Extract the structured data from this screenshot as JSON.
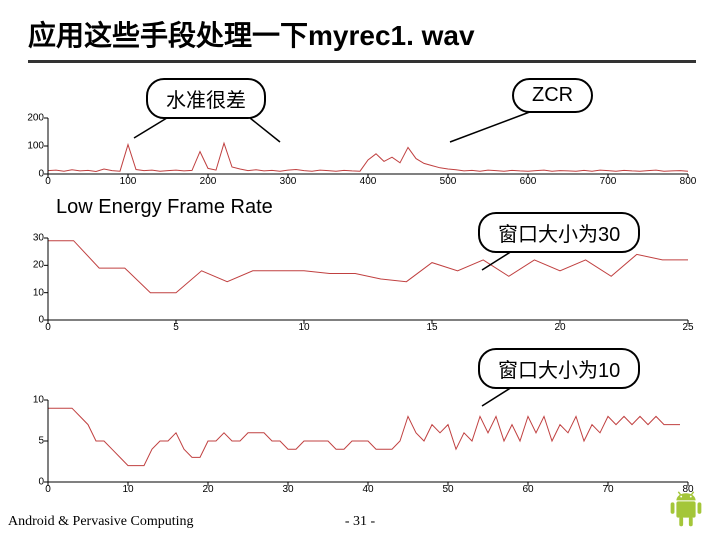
{
  "title": "应用这些手段处理一下myrec1. wav",
  "callouts": {
    "poor": "水准很差",
    "zcr": "ZCR",
    "win30": "窗口大小为30",
    "win10": "窗口大小为10"
  },
  "section_label": "Low Energy Frame Rate",
  "footer": {
    "left": "Android & Pervasive Computing",
    "page": "- 31 -"
  },
  "chart1": {
    "type": "line",
    "line_color": "#c04040",
    "axis_color": "#000000",
    "ylim": [
      0,
      200
    ],
    "yticks": [
      0,
      100,
      200
    ],
    "xlim": [
      0,
      800
    ],
    "xticks": [
      0,
      100,
      200,
      300,
      400,
      500,
      600,
      700,
      800
    ],
    "x": [
      0,
      10,
      20,
      30,
      40,
      50,
      60,
      70,
      80,
      90,
      100,
      110,
      120,
      130,
      140,
      150,
      160,
      170,
      180,
      190,
      200,
      210,
      220,
      230,
      240,
      250,
      260,
      270,
      280,
      290,
      300,
      310,
      320,
      330,
      340,
      350,
      360,
      370,
      380,
      390,
      400,
      410,
      420,
      430,
      440,
      450,
      460,
      470,
      480,
      490,
      500,
      510,
      520,
      530,
      540,
      550,
      560,
      570,
      580,
      590,
      600,
      610,
      620,
      630,
      640,
      650,
      660,
      670,
      680,
      690,
      700,
      710,
      720,
      730,
      740,
      750,
      760,
      770,
      780,
      790,
      800
    ],
    "y": [
      12,
      14,
      10,
      15,
      11,
      13,
      9,
      18,
      12,
      10,
      105,
      16,
      12,
      14,
      10,
      12,
      14,
      11,
      13,
      80,
      20,
      14,
      110,
      25,
      18,
      12,
      15,
      11,
      13,
      10,
      14,
      16,
      12,
      10,
      14,
      12,
      10,
      13,
      11,
      10,
      50,
      72,
      45,
      60,
      40,
      95,
      55,
      38,
      30,
      22,
      18,
      15,
      11,
      13,
      10,
      14,
      12,
      10,
      13,
      11,
      10,
      12,
      14,
      10,
      12,
      11,
      10,
      13,
      10,
      14,
      12,
      10,
      13,
      11,
      10,
      12,
      14,
      10,
      11,
      12,
      10
    ]
  },
  "chart2": {
    "type": "line",
    "line_color": "#c04040",
    "axis_color": "#000000",
    "ylim": [
      0,
      30
    ],
    "yticks": [
      0,
      10,
      20,
      30
    ],
    "xlim": [
      0,
      25
    ],
    "xticks": [
      0,
      5,
      10,
      15,
      20,
      25
    ],
    "x": [
      0,
      1,
      2,
      3,
      4,
      5,
      6,
      7,
      8,
      9,
      10,
      11,
      12,
      13,
      14,
      15,
      16,
      17,
      18,
      19,
      20,
      21,
      22,
      23,
      24,
      25
    ],
    "y": [
      29,
      29,
      19,
      19,
      10,
      10,
      18,
      14,
      18,
      18,
      18,
      17,
      17,
      15,
      14,
      21,
      18,
      22,
      16,
      22,
      18,
      22,
      16,
      24,
      22,
      22
    ]
  },
  "chart3": {
    "type": "line",
    "line_color": "#c04040",
    "axis_color": "#000000",
    "ylim": [
      0,
      10
    ],
    "yticks": [
      0,
      5,
      10
    ],
    "xlim": [
      0,
      80
    ],
    "xticks": [
      0,
      10,
      20,
      30,
      40,
      50,
      60,
      70,
      80
    ],
    "x": [
      0,
      1,
      2,
      3,
      4,
      5,
      6,
      7,
      8,
      9,
      10,
      11,
      12,
      13,
      14,
      15,
      16,
      17,
      18,
      19,
      20,
      21,
      22,
      23,
      24,
      25,
      26,
      27,
      28,
      29,
      30,
      31,
      32,
      33,
      34,
      35,
      36,
      37,
      38,
      39,
      40,
      41,
      42,
      43,
      44,
      45,
      46,
      47,
      48,
      49,
      50,
      51,
      52,
      53,
      54,
      55,
      56,
      57,
      58,
      59,
      60,
      61,
      62,
      63,
      64,
      65,
      66,
      67,
      68,
      69,
      70,
      71,
      72,
      73,
      74,
      75,
      76,
      77,
      78,
      79
    ],
    "y": [
      9,
      9,
      9,
      9,
      8,
      7,
      5,
      5,
      4,
      3,
      2,
      2,
      2,
      4,
      5,
      5,
      6,
      4,
      3,
      3,
      5,
      5,
      6,
      5,
      5,
      6,
      6,
      6,
      5,
      5,
      4,
      4,
      5,
      5,
      5,
      5,
      4,
      4,
      5,
      5,
      5,
      4,
      4,
      4,
      5,
      8,
      6,
      5,
      7,
      6,
      7,
      4,
      6,
      5,
      8,
      6,
      8,
      5,
      7,
      5,
      8,
      6,
      8,
      5,
      7,
      6,
      8,
      5,
      7,
      6,
      8,
      7,
      8,
      7,
      8,
      7,
      8,
      7,
      7,
      7
    ]
  },
  "android_color": "#a4c639"
}
